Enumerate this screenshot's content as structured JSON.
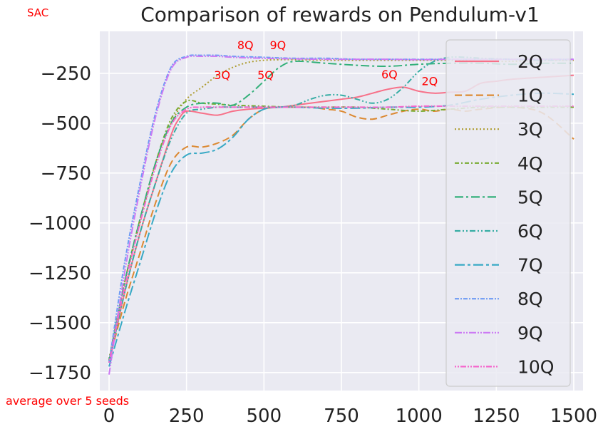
{
  "corner_note": "SAC",
  "bottom_note": "average over 5 seeds",
  "note_color": "#ff0000",
  "chart_data": {
    "type": "line",
    "title": "Comparison of rewards on Pendulum-v1",
    "xlabel": "",
    "ylabel": "",
    "xlim": [
      -30,
      1530
    ],
    "ylim": [
      -1840,
      -40
    ],
    "xticks": [
      0,
      250,
      500,
      750,
      1000,
      1250,
      1500
    ],
    "yticks": [
      -250,
      -500,
      -750,
      -1000,
      -1250,
      -1500,
      -1750
    ],
    "grid": true,
    "background": "#eaeaf2",
    "legend_position": "right",
    "series": [
      {
        "name": "2Q",
        "color": "#f77189",
        "dash": "",
        "x": [
          0,
          50,
          100,
          150,
          200,
          225,
          250,
          300,
          350,
          400,
          450,
          500,
          550,
          600,
          650,
          700,
          750,
          800,
          850,
          900,
          950,
          1000,
          1050,
          1100,
          1150,
          1200,
          1250,
          1300,
          1400,
          1500
        ],
        "y": [
          -1700,
          -1350,
          -1050,
          -800,
          -560,
          -480,
          -440,
          -450,
          -460,
          -440,
          -430,
          -425,
          -420,
          -410,
          -400,
          -390,
          -380,
          -370,
          -350,
          -330,
          -320,
          -340,
          -350,
          -345,
          -340,
          -300,
          -290,
          -280,
          -270,
          -260
        ]
      },
      {
        "name": "1Q",
        "color": "#dc8932",
        "dash": "10,5",
        "x": [
          0,
          50,
          100,
          150,
          200,
          250,
          300,
          350,
          400,
          450,
          500,
          550,
          600,
          650,
          700,
          750,
          800,
          850,
          900,
          950,
          1000,
          1050,
          1100,
          1150,
          1200,
          1300,
          1400,
          1500
        ],
        "y": [
          -1690,
          -1400,
          -1150,
          -900,
          -700,
          -620,
          -620,
          -600,
          -560,
          -480,
          -430,
          -420,
          -420,
          -420,
          -430,
          -440,
          -470,
          -480,
          -460,
          -440,
          -430,
          -440,
          -430,
          -440,
          -430,
          -420,
          -450,
          -580
        ]
      },
      {
        "name": "3Q",
        "color": "#ae9d31",
        "dash": "2,3",
        "x": [
          0,
          50,
          100,
          150,
          200,
          250,
          300,
          350,
          400,
          450,
          500,
          550,
          600,
          700,
          800,
          900,
          1000,
          1100,
          1200,
          1300,
          1400,
          1500
        ],
        "y": [
          -1680,
          -1300,
          -1000,
          -700,
          -500,
          -380,
          -320,
          -260,
          -220,
          -195,
          -185,
          -182,
          -182,
          -185,
          -185,
          -185,
          -185,
          -185,
          -190,
          -190,
          -185,
          -185
        ]
      },
      {
        "name": "4Q",
        "color": "#77ab31",
        "dash": "6,3,2,3",
        "x": [
          0,
          50,
          100,
          150,
          200,
          250,
          300,
          350,
          400,
          500,
          600,
          700,
          800,
          900,
          1000,
          1100,
          1200,
          1300,
          1400,
          1500
        ],
        "y": [
          -1690,
          -1300,
          -980,
          -700,
          -480,
          -390,
          -400,
          -405,
          -410,
          -415,
          -420,
          -420,
          -420,
          -430,
          -440,
          -430,
          -420,
          -420,
          -420,
          -420
        ]
      },
      {
        "name": "5Q",
        "color": "#33b07a",
        "dash": "12,4,3,4",
        "x": [
          0,
          50,
          100,
          150,
          200,
          250,
          300,
          350,
          400,
          450,
          500,
          550,
          600,
          700,
          800,
          900,
          1000,
          1100,
          1200,
          1300,
          1400,
          1500
        ],
        "y": [
          -1690,
          -1300,
          -980,
          -700,
          -500,
          -420,
          -400,
          -400,
          -410,
          -360,
          -290,
          -220,
          -190,
          -200,
          -210,
          -215,
          -205,
          -200,
          -200,
          -205,
          -200,
          -200
        ]
      },
      {
        "name": "6Q",
        "color": "#36ada4",
        "dash": "8,3,2,3,2,3",
        "x": [
          0,
          50,
          100,
          150,
          200,
          250,
          300,
          350,
          400,
          450,
          500,
          550,
          600,
          650,
          700,
          750,
          800,
          850,
          900,
          950,
          1000,
          1050,
          1100,
          1150,
          1200,
          1300,
          1400,
          1500
        ],
        "y": [
          -1700,
          -1350,
          -1050,
          -800,
          -580,
          -450,
          -430,
          -420,
          -420,
          -420,
          -420,
          -420,
          -410,
          -380,
          -360,
          -360,
          -380,
          -400,
          -380,
          -320,
          -240,
          -190,
          -170,
          -170,
          -175,
          -180,
          -185,
          -180
        ]
      },
      {
        "name": "7Q",
        "color": "#38a9c5",
        "dash": "14,4,4,4",
        "x": [
          0,
          50,
          100,
          150,
          200,
          250,
          300,
          350,
          400,
          450,
          500,
          550,
          600,
          700,
          800,
          900,
          1000,
          1100,
          1200,
          1300,
          1400,
          1500
        ],
        "y": [
          -1720,
          -1450,
          -1200,
          -950,
          -750,
          -660,
          -650,
          -630,
          -570,
          -480,
          -430,
          -420,
          -420,
          -425,
          -425,
          -420,
          -420,
          -410,
          -380,
          -360,
          -350,
          -355
        ]
      },
      {
        "name": "8Q",
        "color": "#6e9bf4",
        "dash": "6,2,2,2",
        "x": [
          0,
          50,
          100,
          150,
          200,
          250,
          300,
          350,
          400,
          500,
          600,
          700,
          800,
          900,
          1000,
          1100,
          1200,
          1300,
          1400,
          1500
        ],
        "y": [
          -1700,
          -1200,
          -800,
          -450,
          -220,
          -165,
          -160,
          -160,
          -165,
          -170,
          -175,
          -175,
          -180,
          -180,
          -180,
          -180,
          -180,
          -180,
          -180,
          -180
        ]
      },
      {
        "name": "9Q",
        "color": "#cc7af4",
        "dash": "10,2,2,2,2,2",
        "x": [
          0,
          50,
          100,
          150,
          200,
          250,
          300,
          350,
          400,
          500,
          600,
          700,
          800,
          900,
          1000,
          1100,
          1200,
          1300,
          1400,
          1500
        ],
        "y": [
          -1760,
          -1250,
          -830,
          -470,
          -230,
          -170,
          -165,
          -165,
          -170,
          -175,
          -178,
          -180,
          -180,
          -180,
          -182,
          -180,
          -180,
          -180,
          -180,
          -180
        ]
      },
      {
        "name": "10Q",
        "color": "#f565cc",
        "dash": "2,2,2,2,8,2",
        "x": [
          0,
          50,
          100,
          150,
          200,
          250,
          300,
          350,
          400,
          500,
          600,
          700,
          800,
          900,
          1000,
          1100,
          1200,
          1300,
          1400,
          1500
        ],
        "y": [
          -1700,
          -1320,
          -1000,
          -720,
          -510,
          -430,
          -420,
          -420,
          -420,
          -420,
          -420,
          -420,
          -420,
          -420,
          -415,
          -415,
          -415,
          -415,
          -415,
          -415
        ]
      }
    ],
    "annotations": [
      {
        "text": "8Q",
        "x": 440,
        "y": -130
      },
      {
        "text": "9Q",
        "x": 545,
        "y": -130
      },
      {
        "text": "3Q",
        "x": 365,
        "y": -280
      },
      {
        "text": "5Q",
        "x": 505,
        "y": -280
      },
      {
        "text": "6Q",
        "x": 905,
        "y": -275
      },
      {
        "text": "2Q",
        "x": 1035,
        "y": -310
      }
    ]
  }
}
